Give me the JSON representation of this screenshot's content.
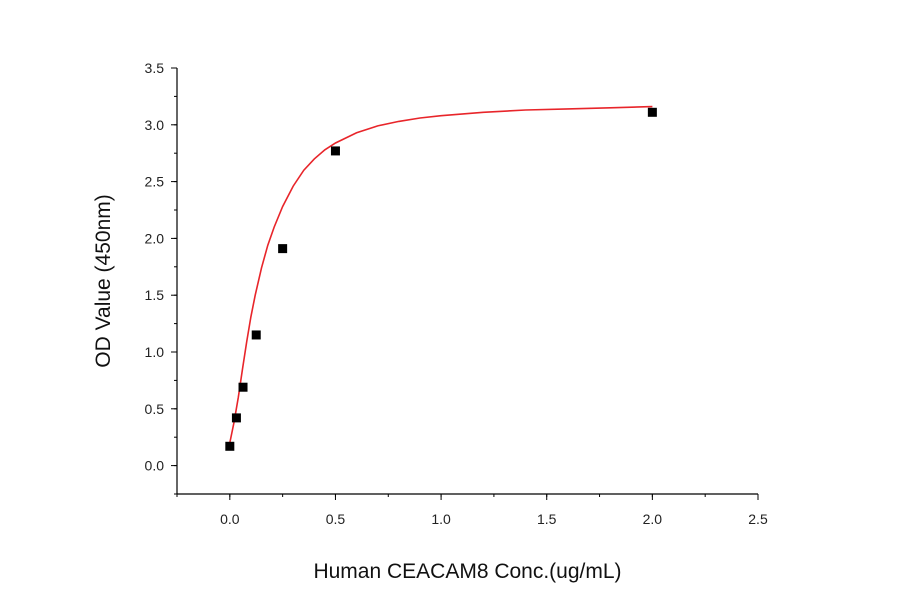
{
  "chart_data": {
    "type": "scatter",
    "title": "",
    "xlabel": "Human CEACAM8 Conc.(ug/mL)",
    "ylabel": "OD Value (450nm)",
    "xlim": [
      -0.25,
      2.5
    ],
    "ylim": [
      -0.25,
      3.5
    ],
    "x_ticks": [
      "0.0",
      "0.5",
      "1.0",
      "1.5",
      "2.0",
      "2.5"
    ],
    "y_ticks": [
      "0.0",
      "0.5",
      "1.0",
      "1.5",
      "2.0",
      "2.5",
      "3.0",
      "3.5"
    ],
    "grid": false,
    "legend": "none",
    "series": [
      {
        "marker": "square",
        "color": "#000000",
        "x": [
          0.0,
          0.03125,
          0.0625,
          0.125,
          0.25,
          0.5,
          2.0
        ],
        "y": [
          0.17,
          0.42,
          0.69,
          1.15,
          1.91,
          2.77,
          3.11
        ]
      }
    ],
    "fit_curve": {
      "type": "line",
      "color": "#e8252a",
      "x": [
        0.0,
        0.02,
        0.04,
        0.06,
        0.08,
        0.1,
        0.12,
        0.15,
        0.18,
        0.21,
        0.25,
        0.3,
        0.35,
        0.4,
        0.45,
        0.5,
        0.6,
        0.7,
        0.8,
        0.9,
        1.0,
        1.2,
        1.4,
        1.6,
        1.8,
        2.0
      ],
      "y": [
        0.2,
        0.38,
        0.6,
        0.85,
        1.09,
        1.31,
        1.5,
        1.74,
        1.94,
        2.1,
        2.28,
        2.46,
        2.6,
        2.7,
        2.78,
        2.84,
        2.93,
        2.99,
        3.03,
        3.06,
        3.08,
        3.11,
        3.13,
        3.14,
        3.15,
        3.16
      ]
    }
  }
}
